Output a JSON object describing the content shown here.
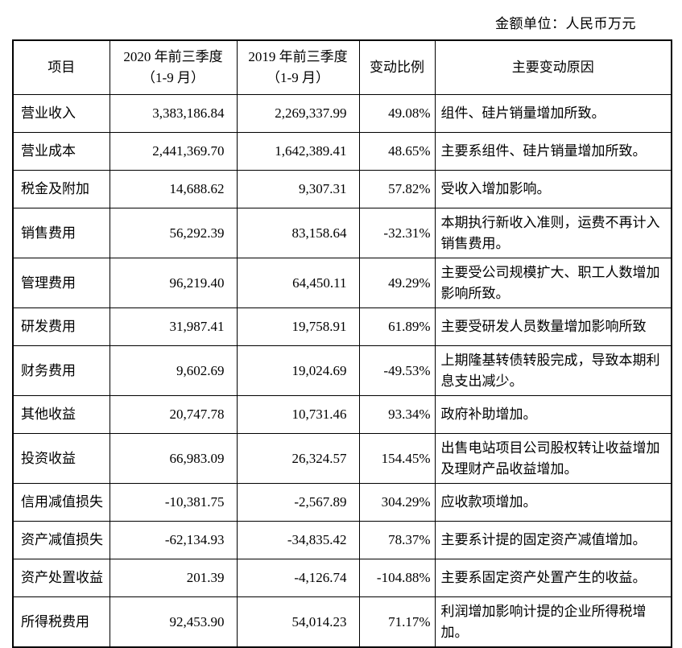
{
  "page": {
    "unit_note": "金额单位：人民币万元"
  },
  "table": {
    "columns": {
      "item": "项目",
      "y2020": [
        "2020 年前三季度",
        "（1-9 月）"
      ],
      "y2019": [
        "2019 年前三季度",
        "（1-9 月）"
      ],
      "change": "变动比例",
      "reason": "主要变动原因"
    },
    "rows": [
      {
        "item": "营业收入",
        "v2020": "3,383,186.84",
        "v2019": "2,269,337.99",
        "change": "49.08%",
        "reason": "组件、硅片销量增加所致。"
      },
      {
        "item": "营业成本",
        "v2020": "2,441,369.70",
        "v2019": "1,642,389.41",
        "change": "48.65%",
        "reason": "主要系组件、硅片销量增加所致。"
      },
      {
        "item": "税金及附加",
        "v2020": "14,688.62",
        "v2019": "9,307.31",
        "change": "57.82%",
        "reason": "本期执行新收入准则，运费不再计入销售费用。",
        "reason_override": "受收入增加影响。"
      },
      {
        "item": "销售费用",
        "v2020": "56,292.39",
        "v2019": "83,158.64",
        "change": "-32.31%",
        "reason": "本期执行新收入准则，运费不再计入销售费用。"
      },
      {
        "item": "管理费用",
        "v2020": "96,219.40",
        "v2019": "64,450.11",
        "change": "49.29%",
        "reason": "主要受公司规模扩大、职工人数增加影响所致。"
      },
      {
        "item": "研发费用",
        "v2020": "31,987.41",
        "v2019": "19,758.91",
        "change": "61.89%",
        "reason": "主要受研发人员数量增加影响所致"
      },
      {
        "item": "财务费用",
        "v2020": "9,602.69",
        "v2019": "19,024.69",
        "change": "-49.53%",
        "reason": "上期隆基转债转股完成，导致本期利息支出减少。"
      },
      {
        "item": "其他收益",
        "v2020": "20,747.78",
        "v2019": "10,731.46",
        "change": "93.34%",
        "reason": "政府补助增加。"
      },
      {
        "item": "投资收益",
        "v2020": "66,983.09",
        "v2019": "26,324.57",
        "change": "154.45%",
        "reason": "出售电站项目公司股权转让收益增加及理财产品收益增加。"
      },
      {
        "item": "信用减值损失",
        "v2020": "-10,381.75",
        "v2019": "-2,567.89",
        "change": "304.29%",
        "reason": "应收款项增加。"
      },
      {
        "item": "资产减值损失",
        "v2020": "-62,134.93",
        "v2019": "-34,835.42",
        "change": "78.37%",
        "reason": "主要系计提的固定资产减值增加。"
      },
      {
        "item": "资产处置收益",
        "v2020": "201.39",
        "v2019": "-4,126.74",
        "change": "-104.88%",
        "reason": "主要系固定资产处置产生的收益。"
      },
      {
        "item": "所得税费用",
        "v2020": "92,453.90",
        "v2019": "54,014.23",
        "change": "71.17%",
        "reason": "利润增加影响计提的企业所得税增加。"
      }
    ]
  }
}
